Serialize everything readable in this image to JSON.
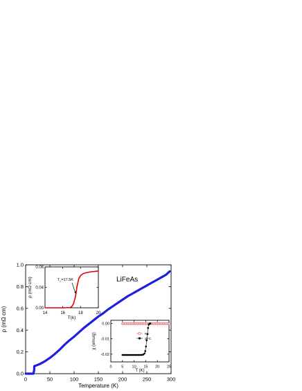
{
  "chart_data": [
    {
      "type": "line",
      "xlabel": "Temperature (K)",
      "ylabel": "ρ (mΩ cm)",
      "xlim": [
        0,
        300
      ],
      "ylim": [
        0.0,
        1.0
      ],
      "xticks": [
        0,
        50,
        100,
        150,
        200,
        250,
        300
      ],
      "xtick_labels": [
        "0",
        "50",
        "100",
        "150",
        "200",
        "250",
        "300"
      ],
      "yticks": [
        0.0,
        0.2,
        0.4,
        0.6,
        0.8,
        1.0
      ],
      "ytick_labels": [
        "0.0",
        "0.2",
        "0.4",
        "0.6",
        "0.8",
        "1.0"
      ],
      "annotation": "LiFeAs",
      "series": [
        {
          "color": "#1f1fe0",
          "x": [
            0,
            16,
            17.5,
            18,
            20,
            30,
            40,
            50,
            60,
            70,
            80,
            90,
            100,
            110,
            120,
            130,
            140,
            150,
            160,
            170,
            180,
            190,
            200,
            210,
            220,
            230,
            240,
            250,
            260,
            270,
            280,
            290,
            297
          ],
          "y": [
            0,
            0,
            0.03,
            0.07,
            0.072,
            0.09,
            0.115,
            0.145,
            0.18,
            0.22,
            0.265,
            0.305,
            0.34,
            0.38,
            0.42,
            0.455,
            0.49,
            0.525,
            0.555,
            0.59,
            0.62,
            0.65,
            0.68,
            0.71,
            0.735,
            0.76,
            0.785,
            0.81,
            0.835,
            0.86,
            0.885,
            0.91,
            0.94
          ]
        }
      ]
    },
    {
      "type": "line",
      "xlabel": "T(k)",
      "ylabel": "ρ (mΩ cm)",
      "xlim": [
        14,
        20
      ],
      "ylim": [
        0.0,
        0.08
      ],
      "xticks": [
        14,
        16,
        18,
        20
      ],
      "xtick_labels": [
        "14",
        "16",
        "18",
        "20"
      ],
      "yticks": [
        0.0,
        0.04,
        0.08
      ],
      "ytick_labels": [
        "0.00",
        "0.04",
        "0.08"
      ],
      "annotation": "Tₑ=17.5K",
      "annotation_main": "T",
      "annotation_sub": "c",
      "annotation_rest": "=17.5K",
      "series": [
        {
          "color": "#e00000",
          "x": [
            14,
            15,
            16,
            16.8,
            17.0,
            17.2,
            17.4,
            17.5,
            17.6,
            17.8,
            18.0,
            18.3,
            18.7,
            19.2,
            20
          ],
          "y": [
            0.0,
            0.0,
            0.0,
            0.0005,
            0.002,
            0.008,
            0.02,
            0.03,
            0.042,
            0.057,
            0.063,
            0.067,
            0.069,
            0.0705,
            0.072
          ]
        }
      ]
    },
    {
      "type": "scatter",
      "xlabel": "T (K)",
      "ylabel": "χ (emu/g)",
      "xlim": [
        0,
        25
      ],
      "ylim": [
        -0.025,
        0.002
      ],
      "xticks": [
        0,
        5,
        10,
        15,
        20,
        25
      ],
      "xtick_labels": [
        "0",
        "5",
        "10",
        "15",
        "20",
        "25"
      ],
      "yticks": [
        0.0,
        -0.01,
        -0.02
      ],
      "ytick_labels": [
        "0.00",
        "-0.01",
        "-0.02"
      ],
      "series": [
        {
          "name": "FC",
          "color": "#e05050",
          "marker": "open-circle",
          "x": [
            5,
            5.5,
            6,
            6.5,
            7,
            7.5,
            8,
            8.5,
            9,
            9.5,
            10,
            10.5,
            11,
            11.5,
            12,
            12.5,
            13,
            13.5,
            14,
            14.5,
            15,
            15.5,
            16,
            16.5,
            17,
            17.5,
            18,
            18.5,
            19,
            19.5,
            20,
            20.5,
            21,
            21.5,
            22,
            22.5,
            23,
            23.5,
            24,
            24.5,
            25
          ],
          "y": [
            -0.0002,
            -0.0002,
            -0.0002,
            -0.0002,
            -0.0002,
            -0.0002,
            -0.0002,
            -0.0002,
            -0.0002,
            -0.0002,
            -0.0002,
            -0.0002,
            -0.0002,
            -0.0002,
            -0.0002,
            -0.0002,
            -0.0002,
            -0.0002,
            -0.0002,
            -0.0002,
            -0.0002,
            -0.0002,
            -0.0002,
            -0.0002,
            -0.0002,
            -0.0002,
            -0.0002,
            -0.0002,
            -0.0002,
            -0.0002,
            -0.0002,
            -0.0002,
            -0.0002,
            -0.0002,
            -0.0002,
            -0.0002,
            -0.0002,
            -0.0002,
            -0.0002,
            -0.0002,
            -0.0002
          ]
        },
        {
          "name": "ZFC",
          "color": "#000000",
          "marker": "filled-circle",
          "x": [
            5,
            5.5,
            6,
            6.5,
            7,
            7.5,
            8,
            8.5,
            9,
            9.5,
            10,
            10.5,
            11,
            11.5,
            12,
            12.5,
            13,
            13.5,
            14,
            14.5,
            14.8,
            15.1,
            15.4,
            15.7,
            16,
            16.3,
            16.6,
            17
          ],
          "y": [
            -0.0205,
            -0.0205,
            -0.0205,
            -0.0205,
            -0.0205,
            -0.0205,
            -0.0205,
            -0.0205,
            -0.0205,
            -0.0205,
            -0.0205,
            -0.0205,
            -0.0205,
            -0.0205,
            -0.0205,
            -0.0205,
            -0.0205,
            -0.0204,
            -0.0202,
            -0.0195,
            -0.018,
            -0.015,
            -0.011,
            -0.007,
            -0.003,
            -0.0008,
            -0.0002,
            0.0
          ]
        }
      ]
    }
  ]
}
